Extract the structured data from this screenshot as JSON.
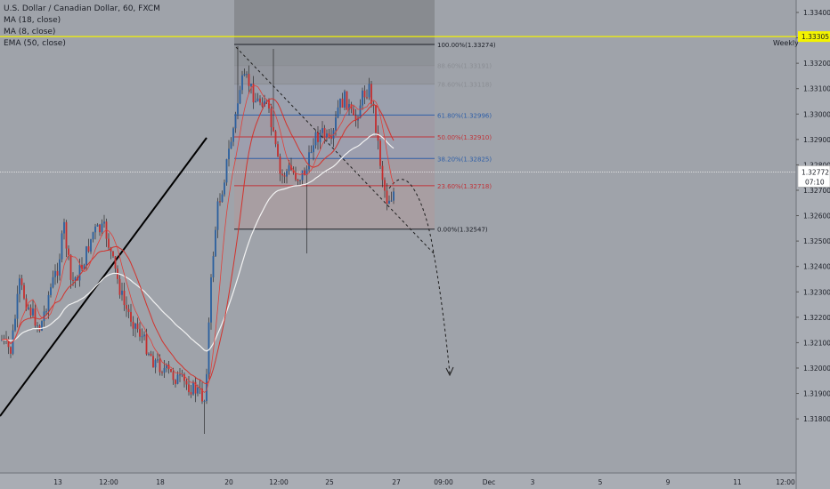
{
  "header": {
    "title": "U.S. Dollar / Canadian Dollar, 60, FXCM",
    "indicators": [
      "MA (18, close)",
      "MA (8, close)",
      "EMA (50, close)"
    ]
  },
  "weekly_label": "Weekly",
  "price_axis": {
    "ticks": [
      "1.33400",
      "1.33300",
      "1.33200",
      "1.33100",
      "1.33000",
      "1.32900",
      "1.32800",
      "1.32700",
      "1.32600",
      "1.32500",
      "1.32400",
      "1.32300",
      "1.32200",
      "1.32100",
      "1.32000",
      "1.31900",
      "1.31800"
    ],
    "weekly_level": "1.33305",
    "current_price": "1.32772",
    "countdown": "07:10"
  },
  "time_axis": {
    "labels": [
      "13",
      "12:00",
      "18",
      "20",
      "12:00",
      "25",
      "27",
      "09:00",
      "Dec",
      "3",
      "5",
      "9",
      "11",
      "12:00"
    ]
  },
  "fib": {
    "levels": [
      {
        "label": "100.00%(1.33274)",
        "value": 1.33274
      },
      {
        "label": "88.60%(1.33191)",
        "value": 1.33191
      },
      {
        "label": "78.60%(1.33118)",
        "value": 1.33118
      },
      {
        "label": "61.80%(1.32996)",
        "value": 1.32996
      },
      {
        "label": "50.00%(1.32910)",
        "value": 1.3291
      },
      {
        "label": "38.20%(1.32825)",
        "value": 1.32825
      },
      {
        "label": "23.60%(1.32718)",
        "value": 1.32718
      },
      {
        "label": "0.00%(1.32547)",
        "value": 1.32547
      }
    ]
  },
  "colors": {
    "background": "#9fa3aa",
    "weekly_line": "#f3f300",
    "fib_gray": "#8a8d93",
    "fib_blue": "#2f5fa8",
    "fib_red": "#c0343a",
    "up_candle": "#2b5f9e",
    "down_candle": "#c42e2e",
    "ma_red": "#d2332d",
    "ema_white": "#f2f2f2",
    "text_dark": "#1b1e26"
  },
  "chart_data": {
    "type": "candlestick",
    "title": "U.S. Dollar / Canadian Dollar, 60, FXCM",
    "ylim": [
      1.3175,
      1.3345
    ],
    "weekly_level": 1.33305,
    "current_price": 1.32772,
    "fib_high": 1.33274,
    "fib_low": 1.32547,
    "approx_price_path": [
      [
        "12",
        1.3227
      ],
      [
        "13",
        1.3242
      ],
      [
        "13 12:00",
        1.3264
      ],
      [
        "15",
        1.323
      ],
      [
        "18",
        1.322
      ],
      [
        "19",
        1.3205
      ],
      [
        "20",
        1.3275
      ],
      [
        "20 12:00",
        1.327
      ],
      [
        "22",
        1.3285
      ],
      [
        "23",
        1.33
      ],
      [
        "25",
        1.329
      ],
      [
        "26",
        1.3315
      ],
      [
        "26 12:00",
        1.3285
      ],
      [
        "27",
        1.3277
      ]
    ]
  }
}
